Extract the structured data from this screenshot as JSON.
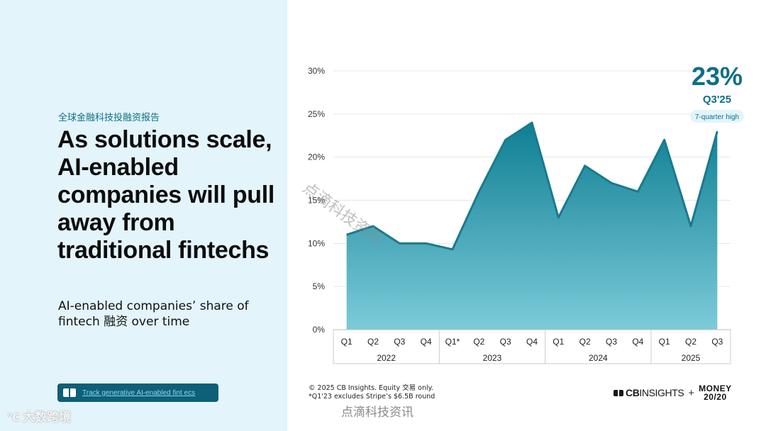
{
  "left": {
    "kicker": "全球金融科技投融资报告",
    "headline": "As solutions scale, AI-enabled companies will pull away from traditional fintechs",
    "subtitle": "AI-enabled companies’ share of fintech 融资 over time",
    "track_button_label": "Track generative AI-enabled fint ecs"
  },
  "corner_logo": {
    "glyph": "℃",
    "text": "大数跨境"
  },
  "footer": {
    "source_line1": "© 2025 CB Insights. Equity 交易 only.",
    "source_line2": "*Q1'23 excludes Stripe’s $6.5B round",
    "watermark_bottom": "点滴科技资讯",
    "watermark_diagonal": "点滴科技资讯"
  },
  "brand": {
    "cb_bold": "CB",
    "cb_thin": "INSIGHTS",
    "plus": "+",
    "money_line1": "MONEY",
    "money_line2": "20/20"
  },
  "colors": {
    "left_bg": "#e3f4fb",
    "line": "#1a7a8e",
    "fill_top": "#0f7f93",
    "fill_bottom": "#7ccbd9",
    "accent": "#0e6f86"
  },
  "chart_data": {
    "type": "area",
    "x": [
      "Q1",
      "Q2",
      "Q3",
      "Q4",
      "Q1*",
      "Q2",
      "Q3",
      "Q4",
      "Q1",
      "Q2",
      "Q3",
      "Q4",
      "Q1",
      "Q2",
      "Q3"
    ],
    "years": [
      {
        "label": "2022",
        "count": 4
      },
      {
        "label": "2023",
        "count": 4
      },
      {
        "label": "2024",
        "count": 4
      },
      {
        "label": "2025",
        "count": 3
      }
    ],
    "values": [
      11,
      12,
      10,
      10,
      9.3,
      16,
      22,
      24,
      13,
      19,
      17,
      16,
      22,
      12,
      23
    ],
    "y_ticks": [
      0,
      5,
      10,
      15,
      20,
      25,
      30
    ],
    "y_tick_labels": [
      "0%",
      "5%",
      "10%",
      "15%",
      "20%",
      "25%",
      "30%"
    ],
    "ylim": [
      0,
      30
    ],
    "grid": true,
    "callout": {
      "value": "23%",
      "period": "Q3'25",
      "note": "7-quarter high"
    }
  }
}
